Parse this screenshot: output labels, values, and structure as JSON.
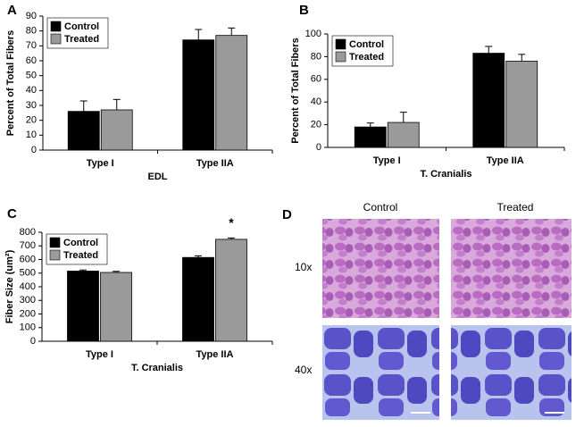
{
  "chart_data": [
    {
      "type": "bar",
      "panel": "A",
      "ylabel": "Percent of Total Fibers",
      "xlabel": "EDL",
      "categories": [
        "Type I",
        "Type IIA"
      ],
      "series": [
        {
          "name": "Control",
          "color": "#000000",
          "values": [
            26,
            74
          ],
          "errors": [
            7,
            7
          ]
        },
        {
          "name": "Treated",
          "color": "#9a9a9a",
          "values": [
            27,
            77
          ],
          "errors": [
            7,
            5
          ]
        }
      ],
      "ylim": [
        0,
        90
      ],
      "yticks": [
        0,
        10,
        20,
        30,
        40,
        50,
        60,
        70,
        80,
        90
      ],
      "legend": "upper left"
    },
    {
      "type": "bar",
      "panel": "B",
      "ylabel": "Percent of Total Fibers",
      "xlabel": "T. Cranialis",
      "categories": [
        "Type I",
        "Type IIA"
      ],
      "series": [
        {
          "name": "Control",
          "color": "#000000",
          "values": [
            18,
            83
          ],
          "errors": [
            3.5,
            6
          ]
        },
        {
          "name": "Treated",
          "color": "#9a9a9a",
          "values": [
            22,
            76
          ],
          "errors": [
            9,
            6
          ]
        }
      ],
      "ylim": [
        0,
        100
      ],
      "yticks": [
        0,
        20,
        40,
        60,
        80,
        100
      ],
      "legend": "upper left"
    },
    {
      "type": "bar",
      "panel": "C",
      "ylabel": "Fiber Size (um²)",
      "xlabel": "T. Cranialis",
      "categories": [
        "Type I",
        "Type IIA"
      ],
      "series": [
        {
          "name": "Control",
          "color": "#000000",
          "values": [
            515,
            615
          ],
          "errors": [
            8,
            12
          ]
        },
        {
          "name": "Treated",
          "color": "#9a9a9a",
          "values": [
            505,
            748
          ],
          "errors": [
            8,
            10
          ]
        }
      ],
      "ylim": [
        0,
        800
      ],
      "yticks": [
        0,
        100,
        200,
        300,
        400,
        500,
        600,
        700,
        800
      ],
      "legend": "upper left",
      "annotation": "*"
    }
  ],
  "panel_d": {
    "panel": "D",
    "columns": [
      "Control",
      "Treated"
    ],
    "rows": [
      "10x",
      "40x"
    ]
  }
}
